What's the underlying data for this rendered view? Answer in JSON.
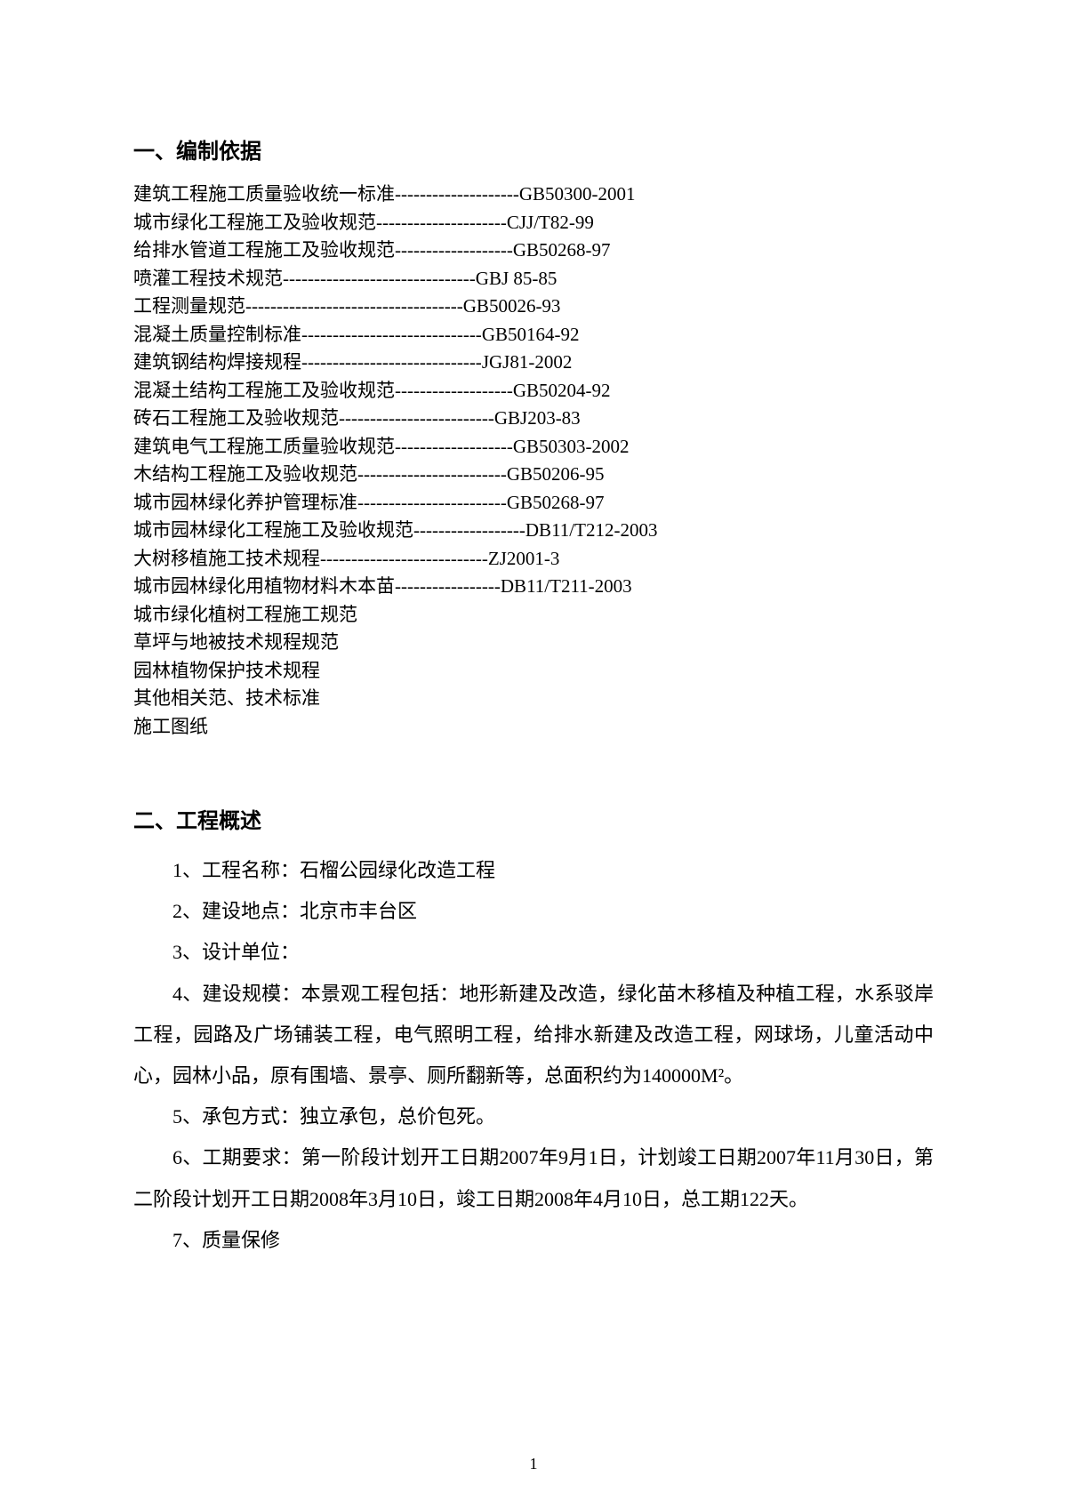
{
  "section1": {
    "title": "一、编制依据",
    "standards": [
      {
        "name": "建筑工程施工质量验收统一标准",
        "dashes": "--------------------",
        "code": "GB50300-2001"
      },
      {
        "name": "城市绿化工程施工及验收规范",
        "dashes": "---------------------",
        "code": "CJJ/T82-99"
      },
      {
        "name": "给排水管道工程施工及验收规范",
        "dashes": "-------------------",
        "code": "GB50268-97"
      },
      {
        "name": "喷灌工程技术规范",
        "dashes": "-------------------------------",
        "code": "GBJ  85-85"
      },
      {
        "name": "工程测量规范",
        "dashes": "-----------------------------------",
        "code": "GB50026-93"
      },
      {
        "name": "混凝土质量控制标准",
        "dashes": "-----------------------------",
        "code": "GB50164-92"
      },
      {
        "name": "建筑钢结构焊接规程",
        "dashes": "-----------------------------",
        "code": "JGJ81-2002"
      },
      {
        "name": "混凝土结构工程施工及验收规范",
        "dashes": "-------------------",
        "code": "GB50204-92"
      },
      {
        "name": "砖石工程施工及验收规范",
        "dashes": "-------------------------",
        "code": "GBJ203-83"
      },
      {
        "name": "建筑电气工程施工质量验收规范",
        "dashes": "-------------------",
        "code": "GB50303-2002"
      },
      {
        "name": "木结构工程施工及验收规范",
        "dashes": "------------------------",
        "code": "GB50206-95"
      },
      {
        "name": "城市园林绿化养护管理标准",
        "dashes": "------------------------",
        "code": "GB50268-97"
      },
      {
        "name": "城市园林绿化工程施工及验收规范",
        "dashes": "------------------",
        "code": "DB11/T212-2003"
      },
      {
        "name": "大树移植施工技术规程",
        "dashes": "---------------------------",
        "code": "ZJ2001-3"
      },
      {
        "name": "城市园林绿化用植物材料木本苗",
        "dashes": "-----------------",
        "code": "DB11/T211-2003"
      }
    ],
    "plain_items": [
      "城市绿化植树工程施工规范",
      "草坪与地被技术规程规范",
      "园林植物保护技术规程",
      "其他相关范、技术标准",
      "施工图纸"
    ]
  },
  "section2": {
    "title": "二、工程概述",
    "items": [
      "1、工程名称：石榴公园绿化改造工程",
      "2、建设地点：北京市丰台区",
      "3、设计单位：",
      "4、建设规模：本景观工程包括：地形新建及改造，绿化苗木移植及种植工程，水系驳岸工程，园路及广场铺装工程，电气照明工程，给排水新建及改造工程，网球场，儿童活动中心，园林小品，原有围墙、景亭、厕所翻新等，总面积约为140000M²。",
      "5、承包方式：独立承包，总价包死。",
      "6、工期要求：第一阶段计划开工日期2007年9月1日，计划竣工日期2007年11月30日，第二阶段计划开工日期2008年3月10日，竣工日期2008年4月10日，总工期122天。",
      "7、质量保修"
    ]
  },
  "page_number": "1"
}
